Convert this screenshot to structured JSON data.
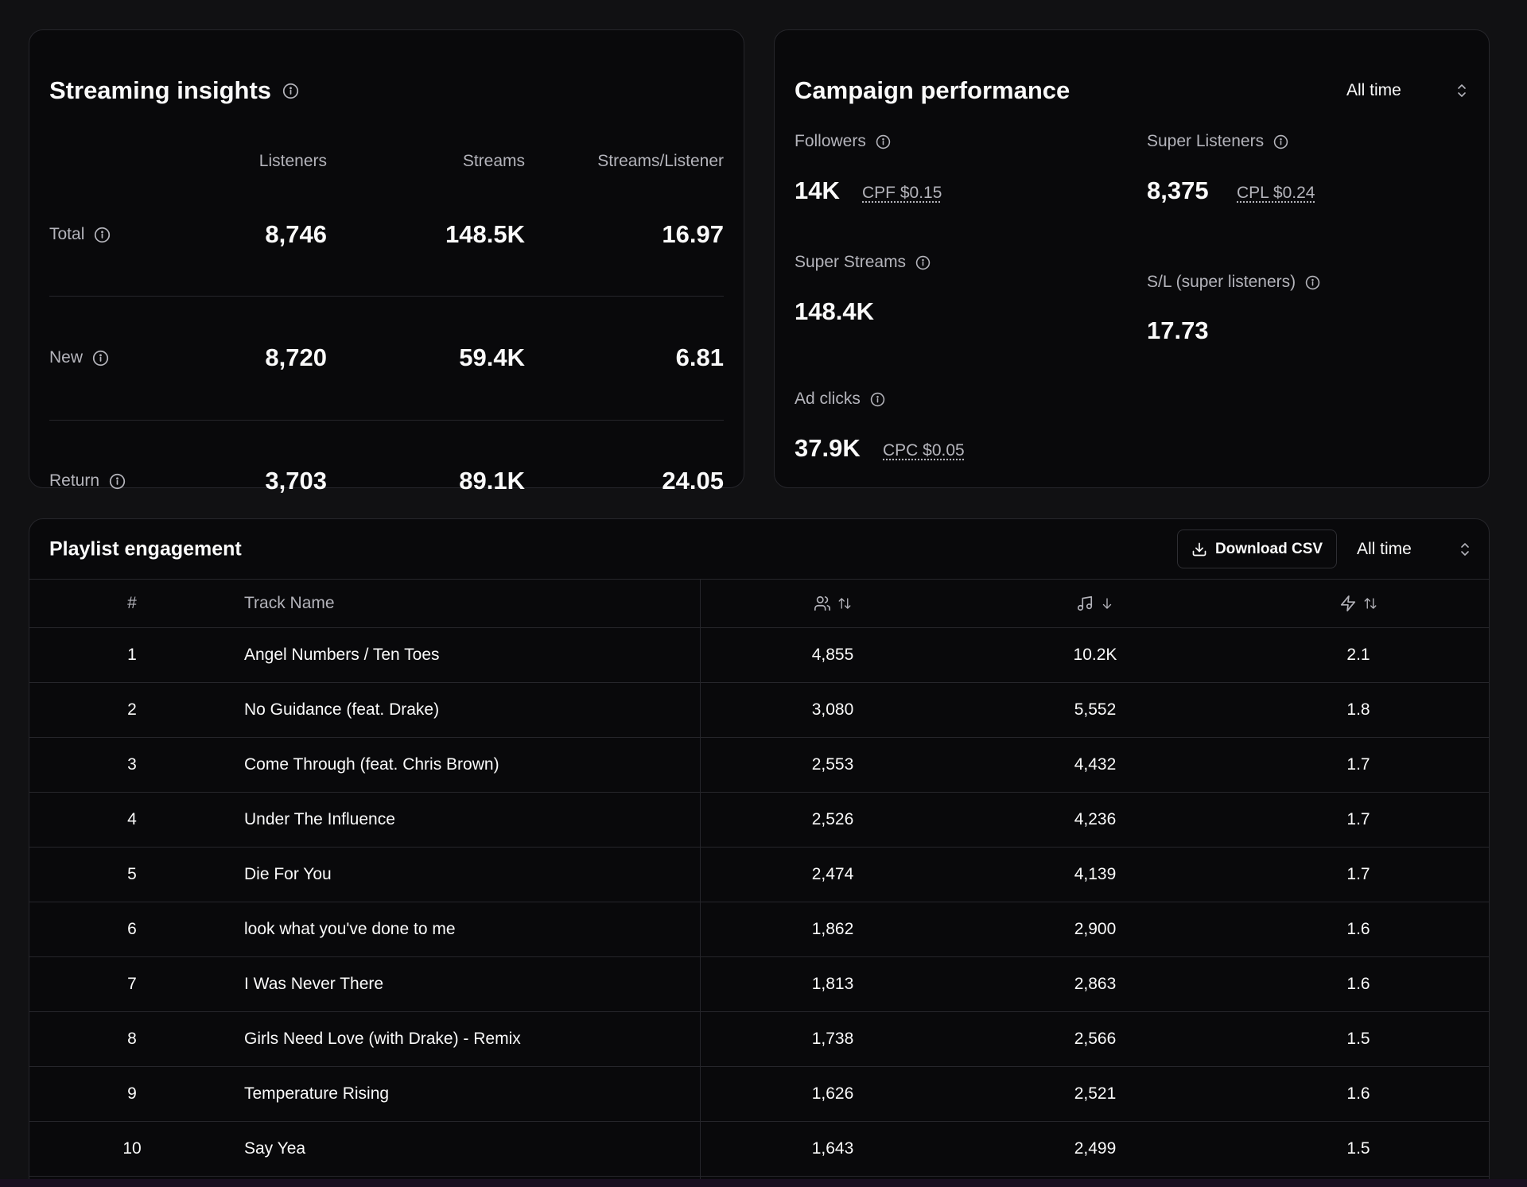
{
  "streaming": {
    "title": "Streaming insights",
    "columns": [
      "Listeners",
      "Streams",
      "Streams/Listener"
    ],
    "rows": [
      {
        "label": "Total",
        "values": [
          "8,746",
          "148.5K",
          "16.97"
        ]
      },
      {
        "label": "New",
        "values": [
          "8,720",
          "59.4K",
          "6.81"
        ]
      },
      {
        "label": "Return",
        "values": [
          "3,703",
          "89.1K",
          "24.05"
        ]
      }
    ]
  },
  "campaign": {
    "title": "Campaign performance",
    "range": "All time",
    "metrics": {
      "followers": {
        "label": "Followers",
        "value": "14K",
        "sub": "CPF $0.15"
      },
      "super_listeners": {
        "label": "Super Listeners",
        "value": "8,375",
        "sub": "CPL $0.24"
      },
      "super_streams": {
        "label": "Super Streams",
        "value": "148.4K"
      },
      "sl": {
        "label": "S/L (super listeners)",
        "value": "17.73"
      },
      "ad_clicks": {
        "label": "Ad clicks",
        "value": "37.9K",
        "sub": "CPC $0.05"
      }
    }
  },
  "playlist": {
    "title": "Playlist engagement",
    "download_label": "Download CSV",
    "range": "All time",
    "headers": {
      "index": "#",
      "track": "Track Name"
    },
    "header_icons": [
      "users-icon",
      "music-note-icon",
      "zap-icon"
    ],
    "tracks": [
      {
        "n": "1",
        "name": "Angel Numbers / Ten Toes",
        "listeners": "4,855",
        "streams": "10.2K",
        "ratio": "2.1"
      },
      {
        "n": "2",
        "name": "No Guidance (feat. Drake)",
        "listeners": "3,080",
        "streams": "5,552",
        "ratio": "1.8"
      },
      {
        "n": "3",
        "name": "Come Through (feat. Chris Brown)",
        "listeners": "2,553",
        "streams": "4,432",
        "ratio": "1.7"
      },
      {
        "n": "4",
        "name": "Under The Influence",
        "listeners": "2,526",
        "streams": "4,236",
        "ratio": "1.7"
      },
      {
        "n": "5",
        "name": "Die For You",
        "listeners": "2,474",
        "streams": "4,139",
        "ratio": "1.7"
      },
      {
        "n": "6",
        "name": "look what you've done to me",
        "listeners": "1,862",
        "streams": "2,900",
        "ratio": "1.6"
      },
      {
        "n": "7",
        "name": "I Was Never There",
        "listeners": "1,813",
        "streams": "2,863",
        "ratio": "1.6"
      },
      {
        "n": "8",
        "name": "Girls Need Love (with Drake) - Remix",
        "listeners": "1,738",
        "streams": "2,566",
        "ratio": "1.5"
      },
      {
        "n": "9",
        "name": "Temperature Rising",
        "listeners": "1,626",
        "streams": "2,521",
        "ratio": "1.6"
      },
      {
        "n": "10",
        "name": "Say Yea",
        "listeners": "1,643",
        "streams": "2,499",
        "ratio": "1.5"
      }
    ]
  }
}
